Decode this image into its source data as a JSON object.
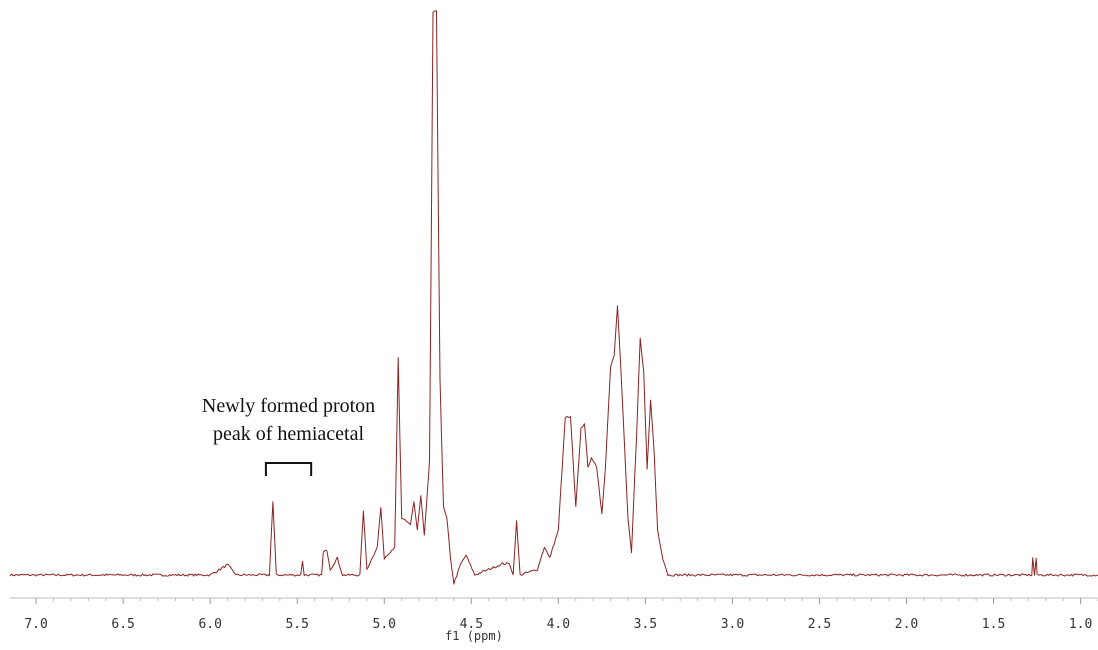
{
  "chart_data": {
    "type": "line",
    "xlabel": "f1 (ppm)",
    "ylabel": "",
    "xlim": [
      7.15,
      0.9
    ],
    "x_reversed": true,
    "ylim": [
      0,
      1
    ],
    "grid": false,
    "line_color": "#8b2323",
    "x_ticks": [
      7.0,
      6.5,
      6.0,
      5.5,
      5.0,
      4.5,
      4.0,
      3.5,
      3.0,
      2.5,
      2.0,
      1.5,
      1.0
    ],
    "x_tick_labels": [
      "7.0",
      "6.5",
      "6.0",
      "5.5",
      "5.0",
      "4.5",
      "4.0",
      "3.5",
      "3.0",
      "2.5",
      "2.0",
      "1.5",
      "1.0"
    ],
    "series": [
      {
        "points": [
          [
            7.15,
            0.0
          ],
          [
            6.0,
            0.0
          ],
          [
            5.9,
            0.018
          ],
          [
            5.85,
            0.0
          ],
          [
            5.66,
            0.0
          ],
          [
            5.64,
            0.13
          ],
          [
            5.62,
            0.0
          ],
          [
            5.48,
            0.0
          ],
          [
            5.47,
            0.025
          ],
          [
            5.46,
            0.0
          ],
          [
            5.36,
            0.0
          ],
          [
            5.35,
            0.04
          ],
          [
            5.33,
            0.045
          ],
          [
            5.31,
            0.01
          ],
          [
            5.27,
            0.03
          ],
          [
            5.24,
            0.0
          ],
          [
            5.14,
            0.0
          ],
          [
            5.12,
            0.115
          ],
          [
            5.1,
            0.01
          ],
          [
            5.04,
            0.05
          ],
          [
            5.02,
            0.12
          ],
          [
            5.0,
            0.03
          ],
          [
            4.94,
            0.05
          ],
          [
            4.92,
            0.385
          ],
          [
            4.9,
            0.1
          ],
          [
            4.85,
            0.09
          ],
          [
            4.83,
            0.13
          ],
          [
            4.81,
            0.08
          ],
          [
            4.79,
            0.14
          ],
          [
            4.77,
            0.07
          ],
          [
            4.74,
            0.2
          ],
          [
            4.72,
            1.0
          ],
          [
            4.7,
            1.0
          ],
          [
            4.68,
            0.35
          ],
          [
            4.66,
            0.12
          ],
          [
            4.64,
            0.1
          ],
          [
            4.62,
            0.03
          ],
          [
            4.6,
            -0.015
          ],
          [
            4.56,
            0.02
          ],
          [
            4.53,
            0.035
          ],
          [
            4.48,
            0.0
          ],
          [
            4.4,
            0.01
          ],
          [
            4.32,
            0.02
          ],
          [
            4.28,
            0.02
          ],
          [
            4.26,
            0.0
          ],
          [
            4.24,
            0.095
          ],
          [
            4.22,
            0.0
          ],
          [
            4.12,
            0.01
          ],
          [
            4.08,
            0.05
          ],
          [
            4.05,
            0.03
          ],
          [
            4.0,
            0.08
          ],
          [
            3.96,
            0.28
          ],
          [
            3.93,
            0.28
          ],
          [
            3.9,
            0.12
          ],
          [
            3.87,
            0.26
          ],
          [
            3.85,
            0.27
          ],
          [
            3.83,
            0.19
          ],
          [
            3.81,
            0.21
          ],
          [
            3.78,
            0.19
          ],
          [
            3.75,
            0.11
          ],
          [
            3.73,
            0.19
          ],
          [
            3.7,
            0.37
          ],
          [
            3.68,
            0.39
          ],
          [
            3.66,
            0.48
          ],
          [
            3.64,
            0.36
          ],
          [
            3.62,
            0.23
          ],
          [
            3.6,
            0.1
          ],
          [
            3.58,
            0.04
          ],
          [
            3.55,
            0.25
          ],
          [
            3.53,
            0.42
          ],
          [
            3.51,
            0.36
          ],
          [
            3.49,
            0.19
          ],
          [
            3.47,
            0.31
          ],
          [
            3.45,
            0.22
          ],
          [
            3.43,
            0.08
          ],
          [
            3.4,
            0.03
          ],
          [
            3.37,
            0.0
          ],
          [
            3.2,
            0.0
          ],
          [
            1.28,
            0.0
          ],
          [
            1.275,
            0.03
          ],
          [
            1.265,
            0.0
          ],
          [
            1.255,
            0.03
          ],
          [
            1.25,
            0.0
          ],
          [
            0.9,
            0.0
          ]
        ]
      }
    ],
    "annotations": [
      {
        "lines": [
          "Newly formed proton",
          "peak of hemiacetal"
        ],
        "bracket_from": 5.68,
        "bracket_to": 5.42
      }
    ]
  }
}
